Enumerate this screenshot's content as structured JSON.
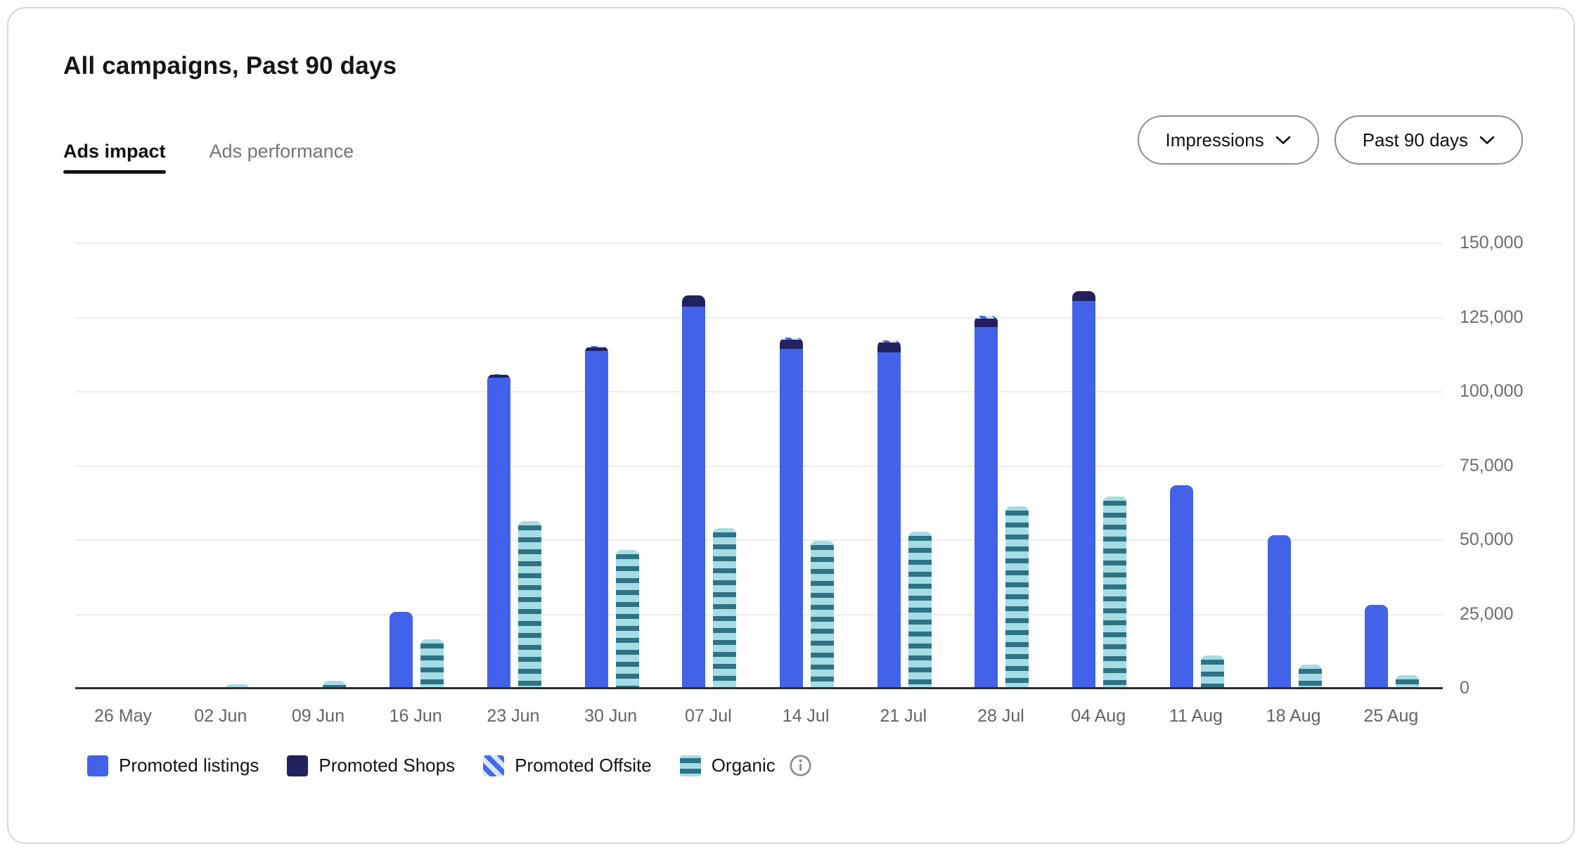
{
  "header": {
    "title": "All campaigns, Past 90 days"
  },
  "tabs": [
    {
      "label": "Ads impact",
      "active": true
    },
    {
      "label": "Ads performance",
      "active": false
    }
  ],
  "controls": {
    "metric_dropdown": {
      "value": "Impressions",
      "icon": "chevron-down-icon"
    },
    "range_dropdown": {
      "value": "Past 90 days",
      "icon": "chevron-down-icon"
    }
  },
  "legend": [
    {
      "label": "Promoted listings",
      "key": "promoted_listings"
    },
    {
      "label": "Promoted Shops",
      "key": "promoted_shops"
    },
    {
      "label": "Promoted Offsite",
      "key": "promoted_offsite"
    },
    {
      "label": "Organic",
      "key": "organic",
      "info_icon": "info-icon"
    }
  ],
  "colors": {
    "promoted_listings": "#4262ea",
    "promoted_shops": "#23215e",
    "promoted_offsite_bg": "#d8e6f9",
    "promoted_offsite_stripe": "#4668ee",
    "organic_light": "#a6dce3",
    "organic_stripe": "#2d7386",
    "gridline": "#ededed",
    "baseline": "#2e2e2e",
    "axis_text": "#6d6d6d"
  },
  "chart_data": {
    "type": "bar",
    "title": "All campaigns, Past 90 days",
    "xlabel": "",
    "ylabel": "Impressions",
    "grid": true,
    "legend_position": "bottom",
    "bar_layout": "one stacked promoted bar (listings+shops+offsite) beside one organic bar per week",
    "categories": [
      "26 May",
      "02 Jun",
      "09 Jun",
      "16 Jun",
      "23 Jun",
      "30 Jun",
      "07 Jul",
      "14 Jul",
      "21 Jul",
      "28 Jul",
      "04 Aug",
      "11 Aug",
      "18 Aug",
      "25 Aug"
    ],
    "series": [
      {
        "name": "Promoted listings",
        "key": "promoted_listings",
        "stack": "promoted",
        "values": [
          0,
          0,
          0,
          25800,
          104800,
          113800,
          128700,
          114400,
          113300,
          121700,
          130500,
          68400,
          51600,
          28300
        ]
      },
      {
        "name": "Promoted Shops",
        "key": "promoted_shops",
        "stack": "promoted",
        "values": [
          0,
          0,
          0,
          0,
          800,
          1200,
          3700,
          3200,
          3400,
          3000,
          3500,
          0,
          0,
          0
        ]
      },
      {
        "name": "Promoted Offsite",
        "key": "promoted_offsite",
        "stack": "promoted",
        "values": [
          0,
          0,
          0,
          0,
          400,
          400,
          0,
          600,
          600,
          1000,
          0,
          0,
          0,
          0
        ]
      },
      {
        "name": "Organic",
        "key": "organic",
        "stack": "organic",
        "values": [
          0,
          1500,
          2500,
          16500,
          56400,
          46700,
          54000,
          49800,
          52900,
          61400,
          64800,
          11100,
          8100,
          4600
        ]
      }
    ],
    "y_axis": {
      "min": 0,
      "max": 150000,
      "step": 25000,
      "tick_labels": [
        "0",
        "25,000",
        "50,000",
        "75,000",
        "100,000",
        "125,000",
        "150,000"
      ],
      "side": "right"
    }
  }
}
